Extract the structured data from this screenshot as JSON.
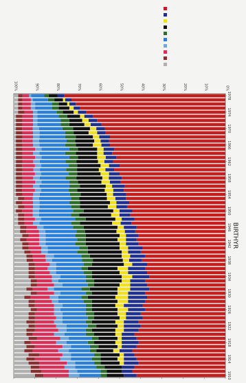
{
  "chart_data": {
    "type": "bar",
    "stacked": true,
    "normalized": true,
    "orientation": "horizontal",
    "xlabel": "BIRTHYR",
    "ylabel": "",
    "ylim": [
      0,
      100
    ],
    "y_ticks": [
      "0%",
      "10%",
      "20%",
      "30%",
      "40%",
      "50%",
      "60%",
      "70%",
      "80%",
      "90%",
      "100%"
    ],
    "x_tick_labels": [
      "1910",
      "1914",
      "1918",
      "1922",
      "1926",
      "1930",
      "1934",
      "1938",
      "1942",
      "1946",
      "1950",
      "1954",
      "1958",
      "1962",
      "1966",
      "1970",
      "1974",
      "1978"
    ],
    "categories_from": 1910,
    "categories_to": 1978,
    "grid": false,
    "legend_position": "top",
    "series": [
      {
        "color": "#c41e1e",
        "values": [
          42,
          44,
          43,
          41,
          42,
          43,
          44,
          42,
          41,
          42,
          43,
          41,
          40,
          41,
          39,
          40,
          38,
          39,
          38,
          37,
          38,
          36,
          37,
          38,
          36,
          37,
          38,
          37,
          39,
          38,
          40,
          39,
          41,
          42,
          41,
          43,
          42,
          44,
          43,
          45,
          44,
          46,
          45,
          47,
          46,
          48,
          47,
          49,
          48,
          50,
          51,
          50,
          52,
          51,
          53,
          52,
          54,
          55,
          54,
          56,
          57,
          58,
          60,
          62,
          65,
          68,
          70,
          72,
          74
        ]
      },
      {
        "color": "#1f2f8f",
        "values": [
          6,
          5,
          6,
          7,
          6,
          5,
          6,
          7,
          8,
          7,
          6,
          7,
          8,
          7,
          8,
          7,
          8,
          9,
          8,
          9,
          8,
          9,
          8,
          7,
          8,
          9,
          8,
          7,
          6,
          7,
          6,
          7,
          6,
          5,
          6,
          5,
          6,
          5,
          6,
          5,
          6,
          5,
          6,
          5,
          6,
          5,
          6,
          5,
          6,
          5,
          4,
          5,
          4,
          5,
          4,
          5,
          4,
          4,
          5,
          4,
          4,
          5,
          4,
          4,
          4,
          3,
          3,
          3,
          3
        ]
      },
      {
        "color": "#f0e020",
        "values": [
          0,
          0,
          0,
          2,
          3,
          2,
          3,
          2,
          3,
          2,
          3,
          4,
          3,
          4,
          3,
          4,
          5,
          4,
          5,
          6,
          5,
          6,
          5,
          4,
          5,
          4,
          5,
          4,
          3,
          4,
          3,
          4,
          3,
          4,
          3,
          4,
          3,
          4,
          3,
          4,
          3,
          4,
          3,
          4,
          3,
          4,
          3,
          4,
          3,
          4,
          3,
          4,
          3,
          4,
          3,
          3,
          4,
          3,
          3,
          4,
          3,
          3,
          3,
          2,
          2,
          2,
          1,
          1,
          0
        ]
      },
      {
        "color": "#111111",
        "values": [
          8,
          7,
          8,
          9,
          8,
          9,
          8,
          9,
          10,
          9,
          10,
          11,
          10,
          11,
          12,
          11,
          12,
          11,
          12,
          13,
          12,
          13,
          12,
          13,
          14,
          13,
          14,
          15,
          14,
          15,
          16,
          15,
          16,
          15,
          16,
          15,
          16,
          15,
          14,
          15,
          14,
          13,
          14,
          13,
          12,
          13,
          12,
          11,
          12,
          11,
          10,
          11,
          10,
          9,
          10,
          9,
          8,
          9,
          8,
          7,
          8,
          7,
          6,
          6,
          5,
          5,
          4,
          4,
          4
        ]
      },
      {
        "color": "#2f6e2a",
        "values": [
          3,
          3,
          4,
          3,
          4,
          3,
          3,
          4,
          3,
          3,
          4,
          3,
          4,
          3,
          3,
          4,
          3,
          3,
          4,
          3,
          3,
          4,
          3,
          4,
          3,
          4,
          3,
          4,
          5,
          4,
          5,
          4,
          5,
          4,
          5,
          4,
          5,
          4,
          5,
          4,
          5,
          4,
          5,
          4,
          5,
          4,
          5,
          4,
          5,
          4,
          5,
          4,
          5,
          4,
          5,
          4,
          5,
          4,
          5,
          4,
          5,
          4,
          4,
          4,
          3,
          3,
          3,
          3,
          2
        ]
      },
      {
        "color": "#2a7fd8",
        "values": [
          10,
          11,
          10,
          9,
          10,
          11,
          10,
          9,
          10,
          11,
          10,
          9,
          10,
          11,
          12,
          11,
          12,
          11,
          12,
          11,
          12,
          13,
          12,
          13,
          12,
          13,
          12,
          13,
          14,
          13,
          14,
          15,
          14,
          15,
          14,
          15,
          14,
          15,
          16,
          15,
          16,
          15,
          14,
          15,
          14,
          13,
          14,
          13,
          12,
          13,
          12,
          13,
          12,
          13,
          12,
          13,
          12,
          13,
          12,
          12,
          11,
          11,
          11,
          10,
          9,
          8,
          8,
          7,
          6
        ]
      },
      {
        "color": "#6fa8e0",
        "values": [
          5,
          4,
          5,
          4,
          5,
          4,
          5,
          4,
          5,
          4,
          5,
          4,
          5,
          4,
          3,
          4,
          3,
          4,
          3,
          4,
          3,
          3,
          4,
          3,
          4,
          3,
          4,
          3,
          3,
          4,
          3,
          3,
          3,
          3,
          3,
          3,
          3,
          3,
          3,
          3,
          3,
          3,
          3,
          3,
          3,
          3,
          3,
          3,
          3,
          3,
          3,
          3,
          3,
          3,
          3,
          3,
          3,
          3,
          3,
          3,
          3,
          2,
          2,
          2,
          2,
          2,
          2,
          1,
          1
        ]
      },
      {
        "color": "#d9305a",
        "values": [
          12,
          13,
          12,
          13,
          12,
          11,
          12,
          13,
          12,
          11,
          10,
          11,
          10,
          9,
          10,
          9,
          8,
          9,
          8,
          9,
          8,
          7,
          8,
          7,
          8,
          7,
          6,
          7,
          6,
          6,
          5,
          6,
          5,
          6,
          5,
          6,
          5,
          4,
          5,
          4,
          5,
          4,
          5,
          4,
          5,
          6,
          5,
          6,
          5,
          6,
          5,
          6,
          5,
          6,
          5,
          6,
          5,
          5,
          5,
          5,
          5,
          5,
          5,
          5,
          4,
          4,
          4,
          4,
          3
        ]
      },
      {
        "color": "#8a2f2f",
        "values": [
          4,
          5,
          4,
          5,
          4,
          5,
          4,
          4,
          3,
          4,
          3,
          4,
          3,
          4,
          3,
          3,
          3,
          3,
          3,
          3,
          3,
          3,
          3,
          3,
          3,
          3,
          3,
          3,
          3,
          3,
          3,
          3,
          3,
          3,
          3,
          3,
          3,
          3,
          3,
          3,
          3,
          3,
          3,
          3,
          3,
          3,
          3,
          3,
          3,
          3,
          3,
          3,
          3,
          3,
          3,
          3,
          3,
          3,
          3,
          3,
          3,
          3,
          3,
          3,
          3,
          2,
          2,
          2,
          2
        ]
      },
      {
        "color": "#b0b0b0",
        "values": [
          10,
          8,
          8,
          7,
          6,
          7,
          5,
          6,
          5,
          7,
          6,
          6,
          7,
          6,
          7,
          7,
          8,
          7,
          7,
          5,
          8,
          6,
          8,
          8,
          7,
          7,
          7,
          7,
          6,
          6,
          5,
          4,
          4,
          3,
          4,
          3,
          3,
          2,
          2,
          2,
          1,
          2,
          1,
          2,
          1,
          1,
          1,
          1,
          1,
          1,
          1,
          1,
          1,
          1,
          1,
          1,
          1,
          1,
          1,
          1,
          1,
          1,
          1,
          1,
          2,
          2,
          2,
          2,
          2
        ]
      }
    ]
  }
}
